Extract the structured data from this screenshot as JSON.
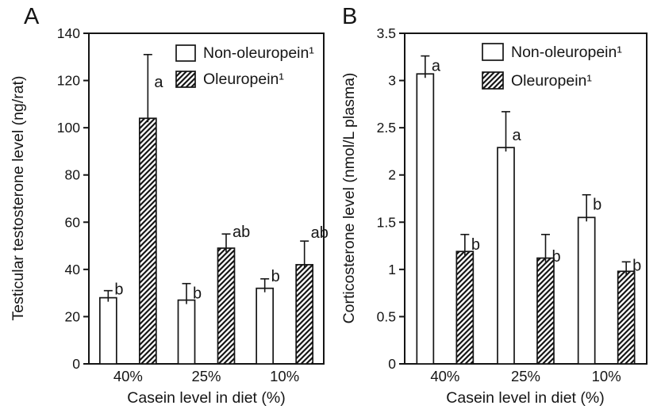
{
  "figure": {
    "background": "#ffffff",
    "ink_color": "#151515",
    "panel_labels": [
      "A",
      "B"
    ]
  },
  "chart_data": [
    {
      "type": "bar",
      "panel": "A",
      "title": "",
      "xlabel": "Casein level in diet (%)",
      "ylabel": "Testicular testosterone level (ng/rat)",
      "ylim": [
        0,
        140
      ],
      "ytick_values": [
        0,
        20,
        40,
        60,
        80,
        100,
        120,
        140
      ],
      "ytick_labels": [
        "0",
        "20",
        "40",
        "60",
        "80",
        "100",
        "120",
        "140"
      ],
      "categories": [
        "40%",
        "25%",
        "10%"
      ],
      "series": [
        {
          "name": "Non-oleuropein¹",
          "fill": "white",
          "values": [
            28,
            27,
            32
          ],
          "errors_upper": [
            3,
            7,
            4
          ],
          "sig_labels": [
            "b",
            "b",
            "b"
          ],
          "sig_dy": [
            5,
            19,
            3
          ]
        },
        {
          "name": "Oleuropein¹",
          "fill": "diagonal-hatch",
          "values": [
            104,
            49,
            42
          ],
          "errors_upper": [
            27,
            6,
            10
          ],
          "sig_labels": [
            "a",
            "ab",
            "ab"
          ],
          "sig_dy": [
            41,
            4,
            -4
          ]
        }
      ],
      "legend_position": "top-right-inside",
      "grid": false
    },
    {
      "type": "bar",
      "panel": "B",
      "title": "",
      "xlabel": "Casein level in diet (%)",
      "ylabel": "Corticosterone level (nmol/L plasma)",
      "ylim": [
        0,
        3.5
      ],
      "ytick_values": [
        0,
        0.5,
        1,
        1.5,
        2,
        2.5,
        3,
        3.5
      ],
      "ytick_labels": [
        "0",
        "0.5",
        "1",
        "1.5",
        "2",
        "2.5",
        "3",
        "3.5"
      ],
      "categories": [
        "40%",
        "25%",
        "10%"
      ],
      "series": [
        {
          "name": "Non-oleuropein¹",
          "fill": "white",
          "values": [
            3.07,
            2.29,
            1.55
          ],
          "errors_upper": [
            0.19,
            0.38,
            0.24
          ],
          "sig_labels": [
            "a",
            "a",
            "b"
          ],
          "sig_dy": [
            19,
            36,
            19
          ]
        },
        {
          "name": "Oleuropein¹",
          "fill": "diagonal-hatch",
          "values": [
            1.19,
            1.12,
            0.98
          ],
          "errors_upper": [
            0.18,
            0.25,
            0.1
          ],
          "sig_labels": [
            "b",
            "b",
            "b"
          ],
          "sig_dy": [
            19,
            34,
            11
          ]
        }
      ],
      "legend_position": "top-right-inside",
      "grid": false
    }
  ]
}
